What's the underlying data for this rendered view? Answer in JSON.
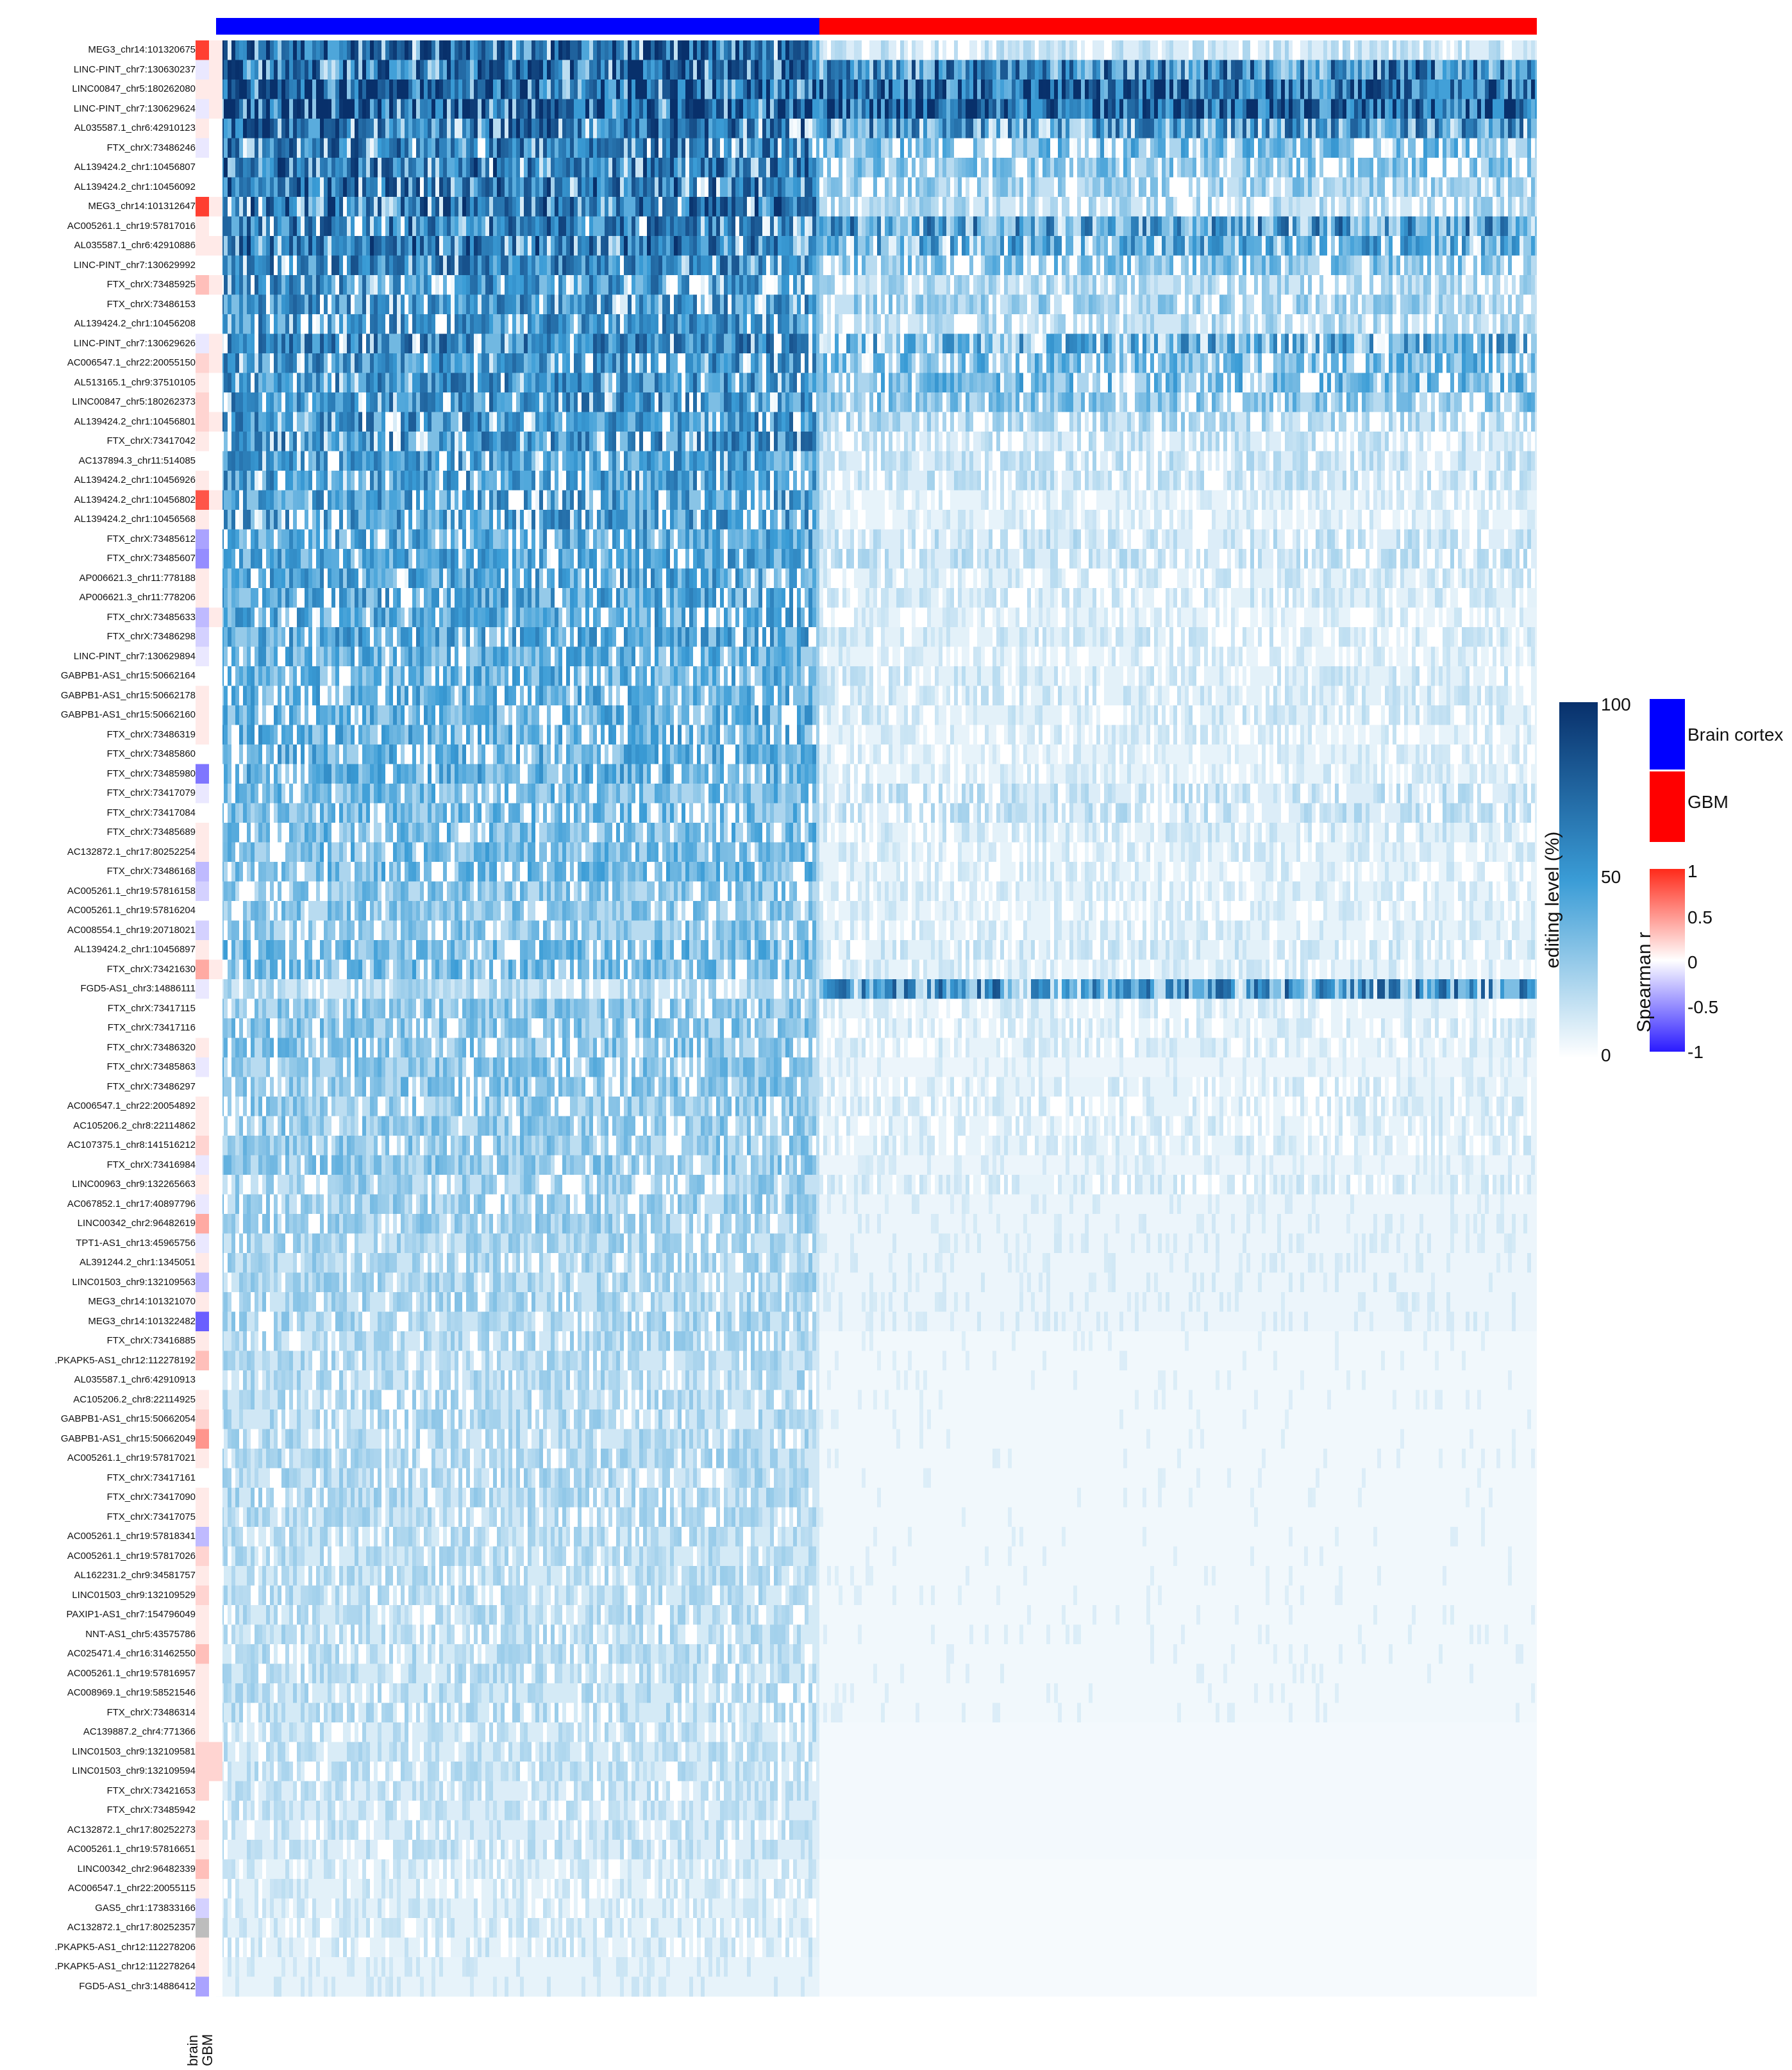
{
  "chart_data": {
    "type": "heatmap",
    "groups": [
      {
        "name": "Brain cortex",
        "color": "#0000ff"
      },
      {
        "name": "GBM",
        "color": "#ff0000"
      }
    ],
    "rows": [
      "MEG3_chr14:101320675",
      "LINC-PINT_chr7:130630237",
      "LINC00847_chr5:180262080",
      "LINC-PINT_chr7:130629624",
      "AL035587.1_chr6:42910123",
      "FTX_chrX:73486246",
      "AL139424.2_chr1:10456807",
      "AL139424.2_chr1:10456092",
      "MEG3_chr14:101312647",
      "AC005261.1_chr19:57817016",
      "AL035587.1_chr6:42910886",
      "LINC-PINT_chr7:130629992",
      "FTX_chrX:73485925",
      "FTX_chrX:73486153",
      "AL139424.2_chr1:10456208",
      "LINC-PINT_chr7:130629626",
      "AC006547.1_chr22:20055150",
      "AL513165.1_chr9:37510105",
      "LINC00847_chr5:180262373",
      "AL139424.2_chr1:10456801",
      "FTX_chrX:73417042",
      "AC137894.3_chr11:514085",
      "AL139424.2_chr1:10456926",
      "AL139424.2_chr1:10456802",
      "AL139424.2_chr1:10456568",
      "FTX_chrX:73485612",
      "FTX_chrX:73485607",
      "AP006621.3_chr11:778188",
      "AP006621.3_chr11:778206",
      "FTX_chrX:73485633",
      "FTX_chrX:73486298",
      "LINC-PINT_chr7:130629894",
      "GABPB1-AS1_chr15:50662164",
      "GABPB1-AS1_chr15:50662178",
      "GABPB1-AS1_chr15:50662160",
      "FTX_chrX:73486319",
      "FTX_chrX:73485860",
      "FTX_chrX:73485980",
      "FTX_chrX:73417079",
      "FTX_chrX:73417084",
      "FTX_chrX:73485689",
      "AC132872.1_chr17:80252254",
      "FTX_chrX:73486168",
      "AC005261.1_chr19:57816158",
      "AC005261.1_chr19:57816204",
      "AC008554.1_chr19:20718021",
      "AL139424.2_chr1:10456897",
      "FTX_chrX:73421630",
      "FGD5-AS1_chr3:14886111",
      "FTX_chrX:73417115",
      "FTX_chrX:73417116",
      "FTX_chrX:73486320",
      "FTX_chrX:73485863",
      "FTX_chrX:73486297",
      "AC006547.1_chr22:20054892",
      "AC105206.2_chr8:22114862",
      "AC107375.1_chr8:141516212",
      "FTX_chrX:73416984",
      "LINC00963_chr9:132265663",
      "AC067852.1_chr17:40897796",
      "LINC00342_chr2:96482619",
      "TPT1-AS1_chr13:45965756",
      "AL391244.2_chr1:1345051",
      "LINC01503_chr9:132109563",
      "MEG3_chr14:101321070",
      "MEG3_chr14:101322482",
      "FTX_chrX:73416885",
      ".PKAPK5-AS1_chr12:112278192",
      "AL035587.1_chr6:42910913",
      "AC105206.2_chr8:22114925",
      "GABPB1-AS1_chr15:50662054",
      "GABPB1-AS1_chr15:50662049",
      "AC005261.1_chr19:57817021",
      "FTX_chrX:73417161",
      "FTX_chrX:73417090",
      "FTX_chrX:73417075",
      "AC005261.1_chr19:57818341",
      "AC005261.1_chr19:57817026",
      "AL162231.2_chr9:34581757",
      "LINC01503_chr9:132109529",
      "PAXIP1-AS1_chr7:154796049",
      "NNT-AS1_chr5:43575786",
      "AC025471.4_chr16:31462550",
      "AC005261.1_chr19:57816957",
      "AC008969.1_chr19:58521546",
      "FTX_chrX:73486314",
      "AC139887.2_chr4:771366",
      "LINC01503_chr9:132109581",
      "LINC01503_chr9:132109594",
      "FTX_chrX:73421653",
      "FTX_chrX:73485942",
      "AC132872.1_chr17:80252273",
      "AC005261.1_chr19:57816651",
      "LINC00342_chr2:96482339",
      "AC006547.1_chr22:20055115",
      "GAS5_chr1:173833166",
      "AC132872.1_chr17:80252357",
      ".PKAPK5-AS1_chr12:112278206",
      ".PKAPK5-AS1_chr12:112278264",
      "FGD5-AS1_chr3:14886412"
    ],
    "annotation_columns": [
      "brain",
      "GBM"
    ],
    "spearman_brain": [
      0.9,
      -0.1,
      0.1,
      -0.1,
      0.1,
      -0.1,
      0.0,
      0.0,
      0.9,
      0.1,
      0.1,
      0.0,
      0.3,
      0.0,
      0.0,
      -0.1,
      0.2,
      0.1,
      0.2,
      0.2,
      0.1,
      0.0,
      0.1,
      0.8,
      0.1,
      -0.4,
      -0.5,
      0.1,
      0.1,
      -0.3,
      -0.2,
      -0.1,
      0.0,
      0.1,
      0.1,
      0.1,
      0.0,
      -0.6,
      -0.1,
      0.0,
      0.1,
      0.1,
      -0.3,
      -0.2,
      0.0,
      -0.2,
      0.1,
      0.4,
      -0.1,
      0.0,
      0.0,
      0.1,
      -0.1,
      0.0,
      0.1,
      0.1,
      0.2,
      -0.1,
      0.1,
      -0.1,
      0.4,
      -0.1,
      0.1,
      -0.3,
      0.1,
      -0.7,
      0.1,
      0.3,
      0.0,
      0.1,
      0.2,
      0.5,
      0.1,
      0.0,
      0.1,
      0.1,
      -0.3,
      0.2,
      0.1,
      0.2,
      0.1,
      0.1,
      0.3,
      0.1,
      0.1,
      0.1,
      0.1,
      0.2,
      0.2,
      0.2,
      0.0,
      0.2,
      0.1,
      0.3,
      0.1,
      -0.2,
      "NA",
      0.1,
      0.1,
      -0.4
    ],
    "spearman_gbm": [
      0.1,
      0.1,
      0.1,
      0.1,
      0.0,
      0.0,
      0.0,
      0.0,
      0.1,
      0.0,
      0.1,
      0.0,
      0.1,
      0.0,
      0.0,
      0.1,
      0.1,
      0.0,
      0.0,
      0.1,
      0.0,
      0.0,
      0.0,
      0.1,
      0.0,
      0.0,
      0.0,
      0.0,
      0.0,
      0.1,
      0.0,
      0.0,
      0.0,
      0.0,
      0.0,
      0.0,
      0.0,
      0.0,
      0.0,
      0.0,
      0.0,
      0.0,
      0.0,
      0.0,
      0.0,
      0.0,
      0.0,
      0.1,
      0.0,
      0.0,
      0.0,
      0.0,
      0.0,
      0.0,
      0.0,
      0.0,
      0.0,
      0.0,
      0.0,
      0.0,
      0.0,
      0.0,
      0.0,
      0.0,
      0.0,
      0.0,
      0.0,
      0.0,
      0.0,
      0.0,
      0.0,
      0.0,
      0.0,
      0.0,
      0.0,
      0.0,
      0.0,
      0.0,
      0.0,
      0.0,
      0.0,
      0.0,
      0.0,
      0.0,
      0.0,
      0.0,
      0.0,
      0.2,
      0.2,
      0.0,
      0.0,
      0.0,
      0.0,
      0.0,
      0.0,
      0.0,
      0.0,
      0.0,
      0.0,
      0.0
    ],
    "brain_mean_editing": [
      75,
      80,
      85,
      85,
      70,
      65,
      70,
      70,
      70,
      65,
      70,
      60,
      55,
      55,
      55,
      60,
      55,
      55,
      55,
      55,
      55,
      50,
      50,
      50,
      50,
      45,
      45,
      45,
      45,
      45,
      45,
      40,
      40,
      40,
      40,
      40,
      40,
      40,
      35,
      35,
      35,
      35,
      35,
      30,
      30,
      30,
      35,
      35,
      20,
      30,
      30,
      30,
      30,
      30,
      28,
      28,
      28,
      28,
      25,
      25,
      25,
      22,
      22,
      22,
      22,
      22,
      20,
      20,
      20,
      20,
      20,
      20,
      20,
      20,
      20,
      20,
      18,
      18,
      18,
      18,
      18,
      18,
      18,
      18,
      18,
      18,
      16,
      16,
      16,
      15,
      15,
      15,
      15,
      12,
      12,
      12,
      12,
      12,
      10,
      10
    ],
    "gbm_mean_editing": [
      15,
      65,
      80,
      85,
      55,
      35,
      30,
      25,
      20,
      55,
      45,
      30,
      20,
      25,
      20,
      45,
      35,
      35,
      30,
      20,
      15,
      15,
      15,
      10,
      10,
      15,
      15,
      12,
      12,
      10,
      12,
      10,
      12,
      12,
      12,
      10,
      10,
      10,
      15,
      15,
      12,
      10,
      10,
      10,
      10,
      10,
      12,
      10,
      55,
      10,
      10,
      10,
      8,
      10,
      10,
      10,
      10,
      8,
      10,
      8,
      8,
      8,
      8,
      8,
      8,
      8,
      6,
      6,
      6,
      6,
      6,
      6,
      6,
      6,
      6,
      6,
      6,
      6,
      6,
      6,
      6,
      6,
      6,
      6,
      6,
      6,
      5,
      5,
      5,
      5,
      5,
      5,
      5,
      4,
      4,
      4,
      4,
      4,
      4,
      4
    ],
    "editing_legend": {
      "title": "editing level (%)",
      "ticks": [
        "100",
        "50",
        "0"
      ],
      "colors": [
        "#08306b",
        "#3a9cd6",
        "#ffffff"
      ]
    },
    "spearman_legend": {
      "title": "Spearman r",
      "ticks": [
        "1",
        "0.5",
        "0",
        "-0.5",
        "-1"
      ],
      "colors": [
        "#ff2a1a",
        "#ffffff",
        "#2a1aff"
      ]
    }
  }
}
